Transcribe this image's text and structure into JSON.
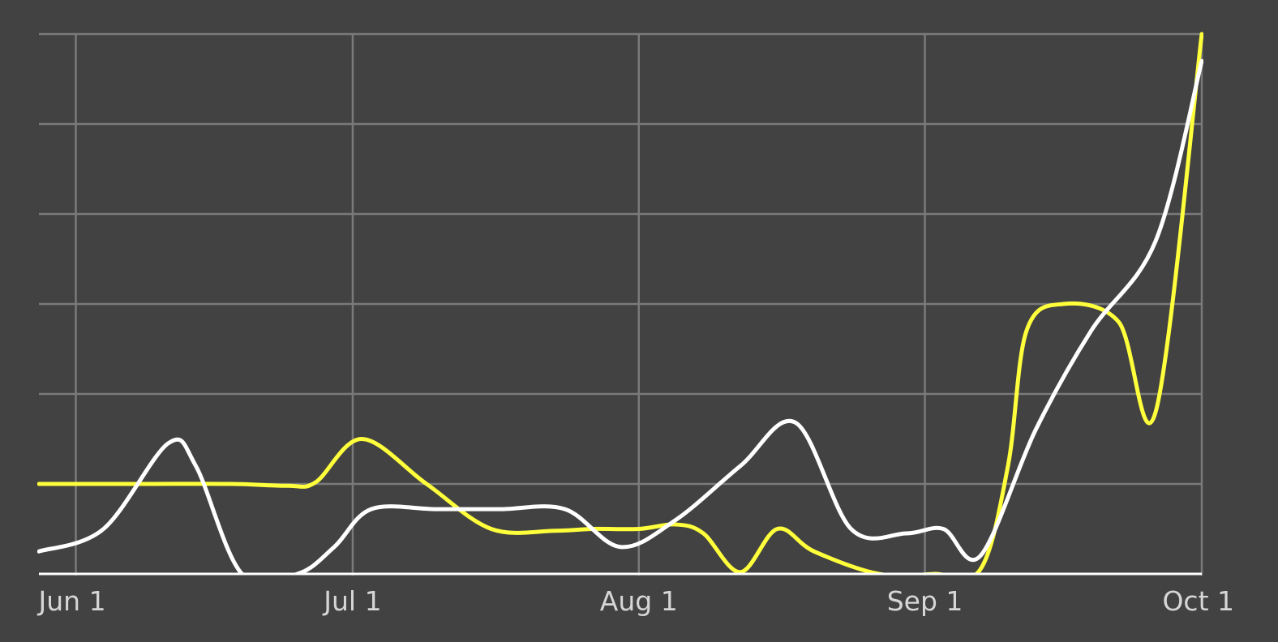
{
  "chart_data": {
    "type": "line",
    "title": "",
    "xlabel": "",
    "ylabel": "",
    "x_ticks": [
      "Jun 1",
      "Jul 1",
      "Aug 1",
      "Sep 1",
      "Oct 1"
    ],
    "xlim": [
      "2024-05-28",
      "2024-10-01"
    ],
    "ylim": [
      0,
      6
    ],
    "y_gridlines": [
      1,
      2,
      3,
      4,
      5,
      6
    ],
    "grid": true,
    "legend": "none",
    "colors": {
      "background": "#424242",
      "grid": "#7a7a7a",
      "yellow_series": "#ffff3b",
      "white_series": "#ffffff"
    },
    "series": [
      {
        "color": "#ffff3b",
        "x": [
          "2024-05-28",
          "2024-06-08",
          "2024-06-18",
          "2024-06-24",
          "2024-06-27",
          "2024-07-02",
          "2024-07-09",
          "2024-07-16",
          "2024-07-23",
          "2024-07-27",
          "2024-08-01",
          "2024-08-05",
          "2024-08-08",
          "2024-08-12",
          "2024-08-16",
          "2024-08-20",
          "2024-08-27",
          "2024-09-02",
          "2024-09-07",
          "2024-09-10",
          "2024-09-12",
          "2024-09-16",
          "2024-09-22",
          "2024-09-26",
          "2024-10-01"
        ],
        "y": [
          1.0,
          1.0,
          1.0,
          0.98,
          1.02,
          1.5,
          1.0,
          0.5,
          0.48,
          0.5,
          0.5,
          0.55,
          0.45,
          0.02,
          0.5,
          0.25,
          0.0,
          0.0,
          0.05,
          1.2,
          2.7,
          3.0,
          2.8,
          1.8,
          6.0
        ]
      },
      {
        "color": "#ffffff",
        "x": [
          "2024-05-28",
          "2024-06-04",
          "2024-06-11",
          "2024-06-14",
          "2024-06-19",
          "2024-06-25",
          "2024-06-29",
          "2024-07-03",
          "2024-07-10",
          "2024-07-17",
          "2024-07-24",
          "2024-07-30",
          "2024-08-05",
          "2024-08-12",
          "2024-08-18",
          "2024-08-24",
          "2024-08-30",
          "2024-09-03",
          "2024-09-07",
          "2024-09-13",
          "2024-09-19",
          "2024-09-26",
          "2024-10-01"
        ],
        "y": [
          0.25,
          0.5,
          1.45,
          1.2,
          0.0,
          0.0,
          0.3,
          0.72,
          0.72,
          0.72,
          0.72,
          0.3,
          0.6,
          1.2,
          1.68,
          0.5,
          0.45,
          0.5,
          0.2,
          1.6,
          2.7,
          3.7,
          5.7
        ]
      }
    ]
  }
}
